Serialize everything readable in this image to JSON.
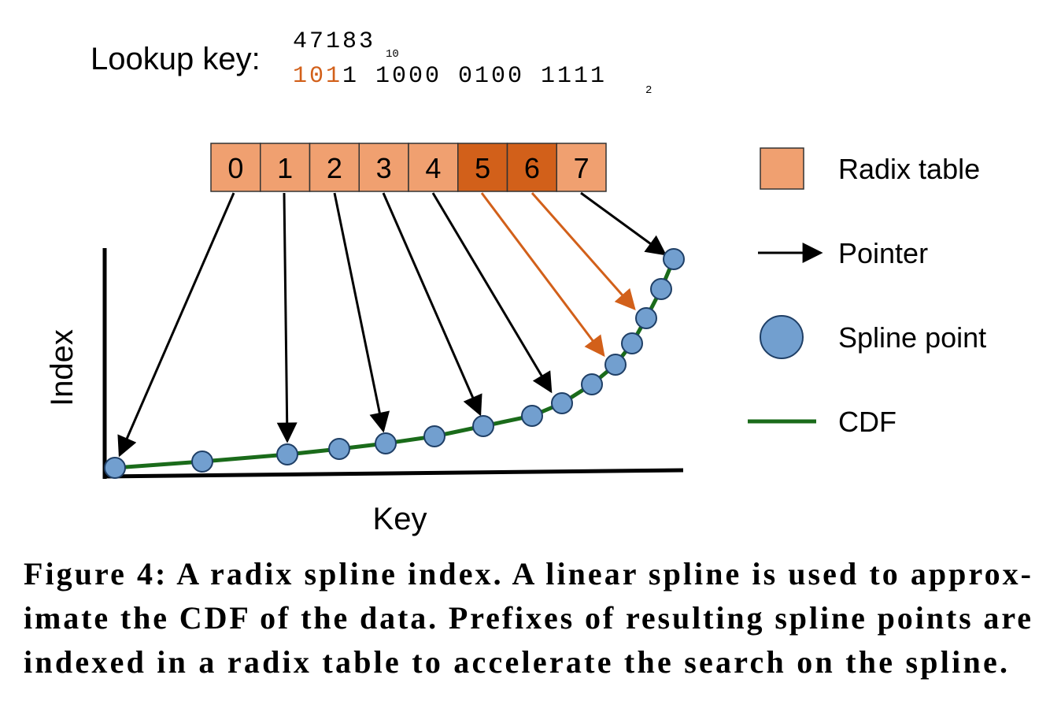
{
  "lookup": {
    "label": "Lookup key:",
    "decimal": "47183",
    "decimal_base": "10",
    "binary_prefix": "101",
    "binary_rest": "1 1000 0100 1111",
    "binary_base": "2"
  },
  "radix_table": {
    "cells": [
      "0",
      "1",
      "2",
      "3",
      "4",
      "5",
      "6",
      "7"
    ]
  },
  "axes": {
    "y_label": "Index",
    "x_label": "Key"
  },
  "legend": {
    "items": [
      "Radix table",
      "Pointer",
      "Spline point",
      "CDF"
    ]
  },
  "caption": {
    "lines": [
      "Figure 4: A radix spline index. A linear spline is used to approx-",
      "imate the CDF of the data. Prefixes of resulting spline points are",
      "indexed in a radix table to accelerate the search on the spline."
    ]
  }
}
